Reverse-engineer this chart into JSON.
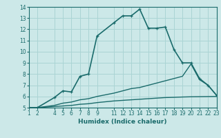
{
  "title": "",
  "xlabel": "Humidex (Indice chaleur)",
  "bg_color": "#cce8e8",
  "grid_color": "#aad4d4",
  "line_color": "#1a6b6b",
  "xlim": [
    1,
    23
  ],
  "ylim": [
    5,
    14
  ],
  "xticks": [
    1,
    2,
    4,
    5,
    6,
    7,
    8,
    9,
    11,
    12,
    13,
    14,
    15,
    16,
    17,
    18,
    19,
    20,
    21,
    22,
    23
  ],
  "yticks": [
    5,
    6,
    7,
    8,
    9,
    10,
    11,
    12,
    13,
    14
  ],
  "series": [
    {
      "x": [
        1,
        2,
        4,
        5,
        6,
        7,
        8,
        9,
        11,
        12,
        13,
        14,
        15,
        16,
        17,
        18,
        19,
        20,
        21,
        22,
        23
      ],
      "y": [
        5.0,
        5.0,
        5.9,
        6.5,
        6.4,
        7.8,
        8.0,
        11.4,
        12.6,
        13.2,
        13.2,
        13.8,
        12.1,
        12.1,
        12.2,
        10.2,
        9.0,
        9.0,
        7.6,
        7.0,
        6.1
      ],
      "marker": true,
      "lw": 1.2
    },
    {
      "x": [
        1,
        2,
        4,
        5,
        6,
        7,
        8,
        9,
        11,
        12,
        13,
        14,
        15,
        16,
        17,
        18,
        19,
        20,
        21,
        22,
        23
      ],
      "y": [
        5.0,
        5.0,
        5.2,
        5.4,
        5.5,
        5.7,
        5.8,
        6.0,
        6.3,
        6.5,
        6.7,
        6.8,
        7.0,
        7.2,
        7.4,
        7.6,
        7.8,
        8.9,
        7.5,
        7.0,
        6.1
      ],
      "marker": false,
      "lw": 1.0
    },
    {
      "x": [
        1,
        2,
        4,
        5,
        6,
        7,
        8,
        9,
        11,
        12,
        13,
        14,
        15,
        16,
        17,
        18,
        19,
        20,
        21,
        22,
        23
      ],
      "y": [
        5.0,
        5.0,
        5.1,
        5.15,
        5.2,
        5.3,
        5.35,
        5.45,
        5.6,
        5.65,
        5.7,
        5.75,
        5.8,
        5.85,
        5.9,
        5.92,
        5.95,
        5.97,
        5.98,
        5.99,
        6.0
      ],
      "marker": false,
      "lw": 1.0
    }
  ]
}
